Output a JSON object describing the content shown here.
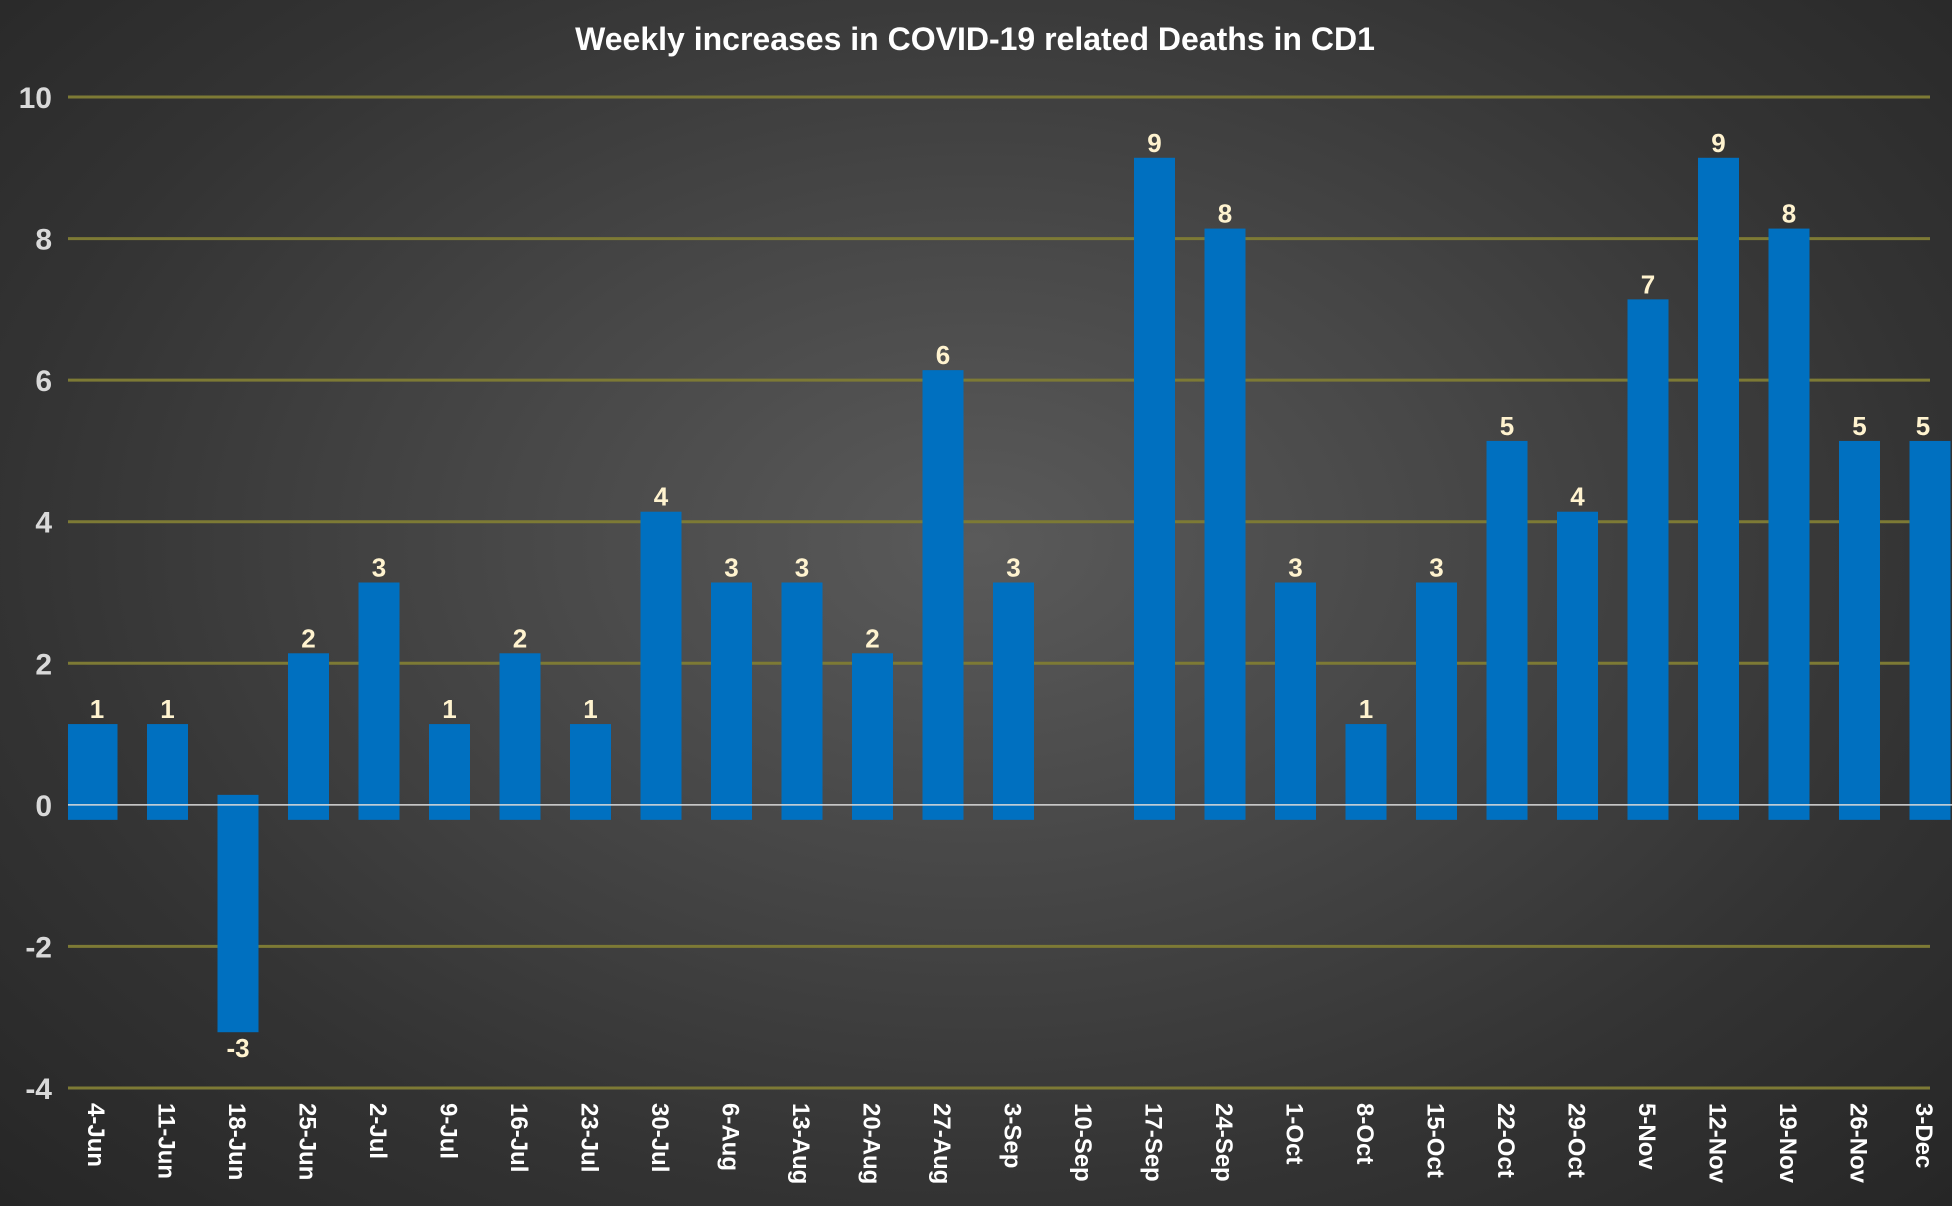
{
  "chart_data": {
    "type": "bar",
    "title": "Weekly increases in COVID-19 related Deaths in CD1",
    "xlabel": "",
    "ylabel": "",
    "ylim": [
      -4,
      10
    ],
    "yticks": [
      10,
      8,
      6,
      4,
      2,
      0,
      -2,
      -4
    ],
    "grid": true,
    "categories": [
      "4-Jun",
      "11-Jun",
      "18-Jun",
      "25-Jun",
      "2-Jul",
      "9-Jul",
      "16-Jul",
      "23-Jul",
      "30-Jul",
      "6-Aug",
      "13-Aug",
      "20-Aug",
      "27-Aug",
      "3-Sep",
      "10-Sep",
      "17-Sep",
      "24-Sep",
      "1-Oct",
      "8-Oct",
      "15-Oct",
      "22-Oct",
      "29-Oct",
      "5-Nov",
      "12-Nov",
      "19-Nov",
      "26-Nov",
      "3-Dec"
    ],
    "values": [
      1,
      1,
      -3,
      2,
      3,
      1,
      2,
      1,
      4,
      3,
      3,
      2,
      6,
      3,
      null,
      9,
      8,
      3,
      1,
      3,
      5,
      4,
      7,
      9,
      8,
      5,
      5
    ],
    "data_labels": [
      "1",
      "1",
      "-3",
      "2",
      "3",
      "1",
      "2",
      "1",
      "4",
      "3",
      "3",
      "2",
      "6",
      "3",
      "",
      "9",
      "8",
      "3",
      "1",
      "3",
      "5",
      "4",
      "7",
      "9",
      "8",
      "5",
      "5"
    ],
    "colors": {
      "bar": "#0070c0",
      "gridline": "#7d7a35",
      "zero_line": "#d9d9d9",
      "title": "#ffffff",
      "tick": "#d9d9d9",
      "data_label": "#fff3cf"
    }
  }
}
